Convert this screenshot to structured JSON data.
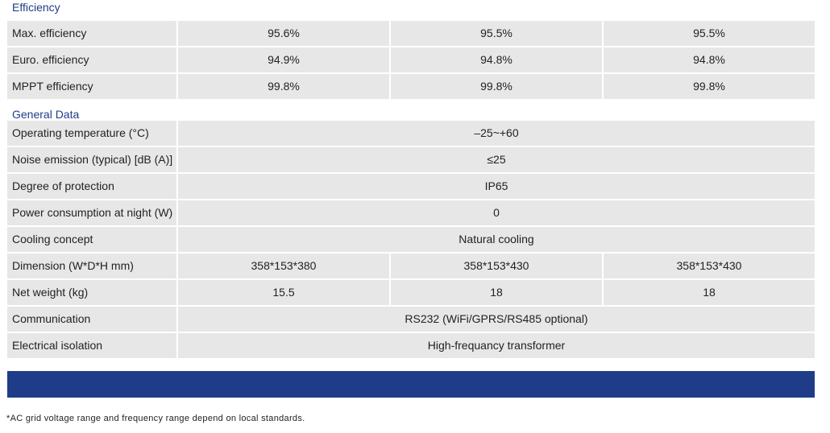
{
  "sections": [
    {
      "title": "Efficiency",
      "rows": [
        {
          "label": "Max. efficiency",
          "cells": [
            "95.6%",
            "95.5%",
            "95.5%"
          ]
        },
        {
          "label": "Euro. efficiency",
          "cells": [
            "94.9%",
            "94.8%",
            "94.8%"
          ]
        },
        {
          "label": "MPPT efficiency",
          "cells": [
            "99.8%",
            "99.8%",
            "99.8%"
          ]
        }
      ]
    },
    {
      "title": "General Data",
      "rows": [
        {
          "label": "Operating temperature (°C)",
          "cells": [
            "–25~+60"
          ]
        },
        {
          "label": "Noise emission (typical) [dB (A)]",
          "cells": [
            "≤25"
          ]
        },
        {
          "label": "Degree of protection",
          "cells": [
            "IP65"
          ]
        },
        {
          "label": "Power consumption at night (W)",
          "cells": [
            "0"
          ]
        },
        {
          "label": "Cooling concept",
          "cells": [
            "Natural cooling"
          ]
        },
        {
          "label": "Dimension (W*D*H mm)",
          "cells": [
            "358*153*380",
            "358*153*430",
            "358*153*430"
          ]
        },
        {
          "label": "Net weight (kg)",
          "cells": [
            "15.5",
            "18",
            "18"
          ]
        },
        {
          "label": "Communication",
          "cells": [
            "RS232 (WiFi/GPRS/RS485 optional)"
          ]
        },
        {
          "label": "Electrical isolation",
          "cells": [
            "High-frequancy transformer"
          ]
        }
      ]
    }
  ],
  "footnote": "*AC grid voltage range and frequency range depend on local standards."
}
